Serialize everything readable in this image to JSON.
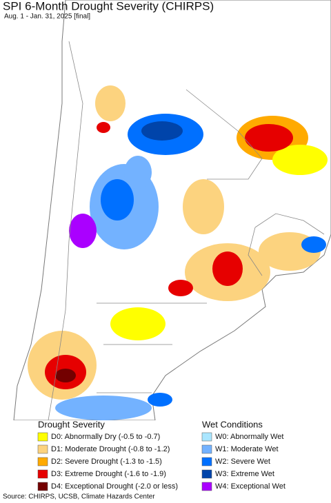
{
  "title": "SPI 6-Month Drought Severity (CHIRPS)",
  "subtitle": "Aug. 1 - Jan. 31, 2025 [final]",
  "legend": {
    "drought": {
      "title": "Drought Severity",
      "items": [
        {
          "label": "D0: Abnormally Dry (-0.5 to -0.7)",
          "color": "#ffff00"
        },
        {
          "label": "D1: Moderate Drought (-0.8 to -1.2)",
          "color": "#fcd37f"
        },
        {
          "label": "D2: Severe Drought (-1.3 to -1.5)",
          "color": "#ffaa00"
        },
        {
          "label": "D3: Extreme Drought (-1.6 to -1.9)",
          "color": "#e60000"
        },
        {
          "label": "D4: Exceptional Drought (-2.0 or less)",
          "color": "#730000"
        }
      ]
    },
    "wet": {
      "title": "Wet Conditions",
      "items": [
        {
          "label": "W0: Abnormally Wet",
          "color": "#aae6ff"
        },
        {
          "label": "W1: Moderate Wet",
          "color": "#73b2ff"
        },
        {
          "label": "W2: Severe Wet",
          "color": "#0070ff"
        },
        {
          "label": "W3: Extreme Wet",
          "color": "#0044aa"
        },
        {
          "label": "W4: Exceptional Wet",
          "color": "#aa00ff"
        }
      ]
    }
  },
  "source": "Source: CHIRPS, UCSB, Climate Hazards Center"
}
